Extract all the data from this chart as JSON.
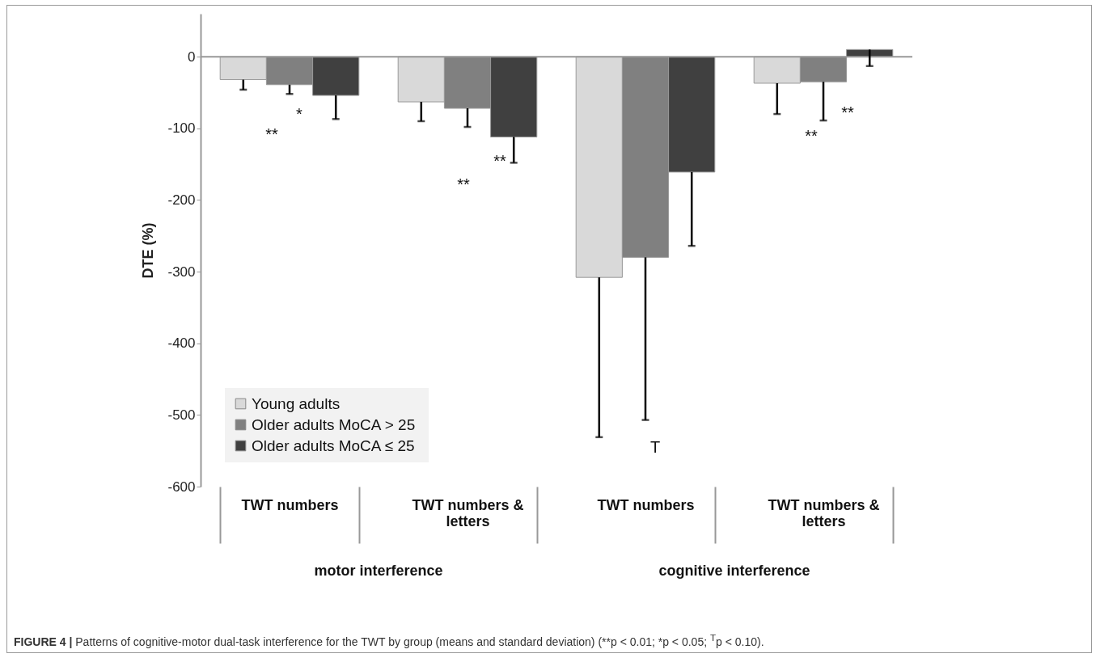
{
  "chart_data": {
    "type": "bar",
    "ylabel": "DTE  (%)",
    "categories": [
      "TWT numbers",
      "TWT numbers & letters",
      "TWT numbers",
      "TWT numbers & letters"
    ],
    "series": [
      {
        "name": "Young adults",
        "color": "#d9d9d9",
        "values": [
          -32,
          -63,
          -308,
          -37
        ],
        "errors": [
          [
            -46,
            -32
          ],
          [
            -90,
            -63
          ],
          [
            -531,
            -308
          ],
          [
            -80,
            -37
          ]
        ]
      },
      {
        "name": "Older adults  MoCA > 25",
        "color": "#808080",
        "values": [
          -39,
          -72,
          -280,
          -35
        ],
        "errors": [
          [
            -52,
            -39
          ],
          [
            -98,
            -72
          ],
          [
            -507,
            -280
          ],
          [
            -89,
            -35
          ]
        ]
      },
      {
        "name": "Older adults  MoCA ≤ 25",
        "color": "#404040",
        "values": [
          -54,
          -112,
          -161,
          10
        ],
        "errors": [
          [
            -87,
            -54
          ],
          [
            -148,
            -112
          ],
          [
            -264,
            -161
          ],
          [
            -13,
            10
          ]
        ]
      }
    ],
    "ylim": [
      -600,
      60
    ],
    "yticks": [
      -600,
      -500,
      -400,
      -300,
      -200,
      -100,
      0
    ],
    "legend": "bottom left",
    "annotations": [
      "*",
      "**",
      "**",
      "**",
      "T",
      "**",
      "**",
      "motor interference",
      "cognitive interference",
      "FIGURE 4 | Patterns of cognitive-motor dual-task interference for the TWT by group (means and standard deviation) (**p < 0.01; *p < 0.05; $^{T}$p < 0.10)."
    ]
  }
}
